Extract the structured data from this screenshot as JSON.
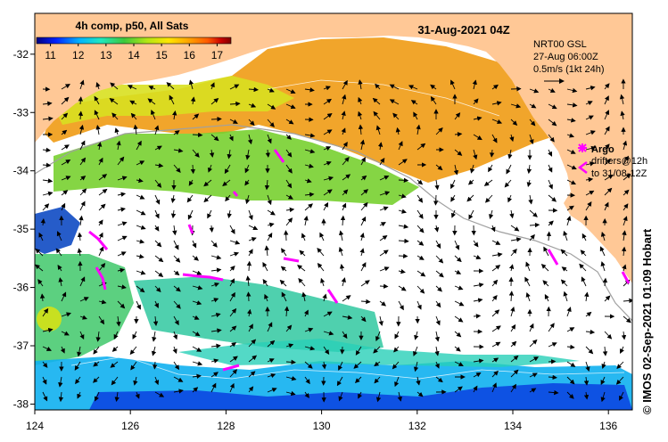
{
  "header": {
    "composite_label": "4h comp, p50, All Sats",
    "date_label": "31-Aug-2021 04Z"
  },
  "colorbar": {
    "ticks": [
      "11",
      "12",
      "13",
      "14",
      "15",
      "16",
      "17"
    ],
    "value_range": [
      10.5,
      17.5
    ],
    "colors": [
      "#00007f",
      "#0022ff",
      "#00b4ff",
      "#20e8c0",
      "#3cc83c",
      "#b4e614",
      "#ffe600",
      "#ffa500",
      "#ff5a00",
      "#c80000",
      "#7f0000"
    ]
  },
  "currents_info": {
    "line1": "NRT00 GSL",
    "line2": "27-Aug 06:00Z",
    "line3": "0.5m/s (1kt 24h)"
  },
  "legend": {
    "argo_label": "Argo",
    "drifters_line1": "drifters@12h",
    "drifters_line2": "to 31/08-12Z",
    "argo_color": "#ff00ff"
  },
  "axes": {
    "x_ticks": [
      "124",
      "126",
      "128",
      "130",
      "132",
      "134",
      "136"
    ],
    "y_ticks": [
      "-32",
      "-33",
      "-34",
      "-35",
      "-36",
      "-37",
      "-38"
    ],
    "lon_range": [
      124,
      136.5
    ],
    "lat_range": [
      -38.1,
      -31.3
    ]
  },
  "credit": "©  IMOS 02-Sep-2021 01:09 Hobart",
  "colors": {
    "land": "#ffc896",
    "ocean_nodata": "#ffffff",
    "frame": "#000000"
  }
}
